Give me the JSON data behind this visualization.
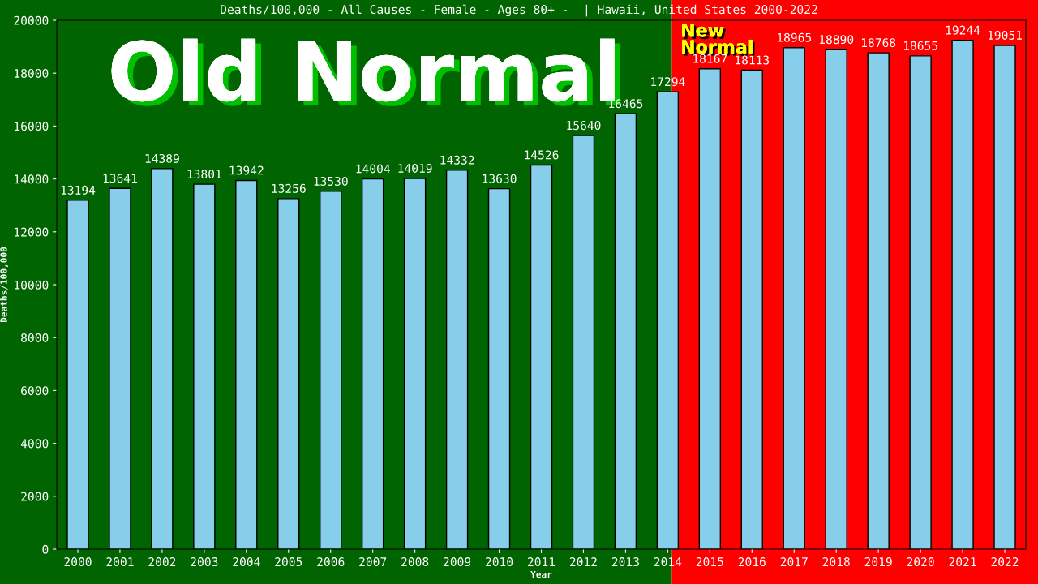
{
  "chart_data": {
    "type": "bar",
    "title": "Deaths/100,000 - All Causes - Female - Ages 80+ -  | Hawaii, United States 2000-2022",
    "xlabel": "Year",
    "ylabel": "Deaths/100,000",
    "categories": [
      "2000",
      "2001",
      "2002",
      "2003",
      "2004",
      "2005",
      "2006",
      "2007",
      "2008",
      "2009",
      "2010",
      "2011",
      "2012",
      "2013",
      "2014",
      "2015",
      "2016",
      "2017",
      "2018",
      "2019",
      "2020",
      "2021",
      "2022"
    ],
    "values": [
      13194,
      13641,
      14389,
      13801,
      13942,
      13256,
      13530,
      14004,
      14019,
      14332,
      13630,
      14526,
      15640,
      16465,
      17294,
      18167,
      18113,
      18965,
      18890,
      18768,
      18655,
      19244,
      19051
    ],
    "color": "#87ceeb",
    "ylim": [
      0,
      20000
    ],
    "yticks": [
      0,
      2000,
      4000,
      6000,
      8000,
      10000,
      12000,
      14000,
      16000,
      18000,
      20000
    ],
    "grid": false,
    "data_labels": true,
    "bands": [
      {
        "axis": "x",
        "from": "2000",
        "to": "2014",
        "label": "Old Normal",
        "color": "#006400"
      },
      {
        "axis": "x",
        "from": "2014",
        "to": "2022",
        "label": "New Normal",
        "color": "#ff0000"
      }
    ]
  }
}
